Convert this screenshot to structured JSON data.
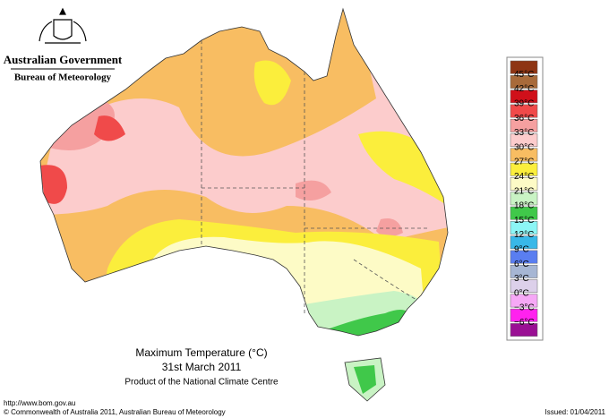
{
  "header": {
    "government": "Australian Government",
    "agency": "Bureau of Meteorology"
  },
  "map": {
    "title": "Maximum Temperature (°C)",
    "date": "31st March 2011",
    "product": "Product of the National Climate Centre"
  },
  "legend": {
    "labels": [
      "45°C",
      "42°C",
      "39°C",
      "36°C",
      "33°C",
      "30°C",
      "27°C",
      "24°C",
      "21°C",
      "18°C",
      "15°C",
      "12°C",
      "9°C",
      "6°C",
      "3°C",
      "0°C",
      "−3°C",
      "−6°C"
    ],
    "colors": [
      "#8e3514",
      "#a86a3a",
      "#d0101a",
      "#f04a4a",
      "#f5a0a0",
      "#fccccc",
      "#f8bd62",
      "#fbee3c",
      "#fdfbc6",
      "#c9f3c4",
      "#40c84a",
      "#8cf6f6",
      "#38b8e8",
      "#5a7ef0",
      "#a6b6d4",
      "#dcd0ea",
      "#f6a8f6",
      "#ff22ee",
      "#9a1094"
    ]
  },
  "footer": {
    "url": "http://www.bom.gov.au",
    "copyright": "© Commonwealth of Australia 2011, Australian Bureau of Meteorology",
    "issued": "Issued: 01/04/2011"
  }
}
